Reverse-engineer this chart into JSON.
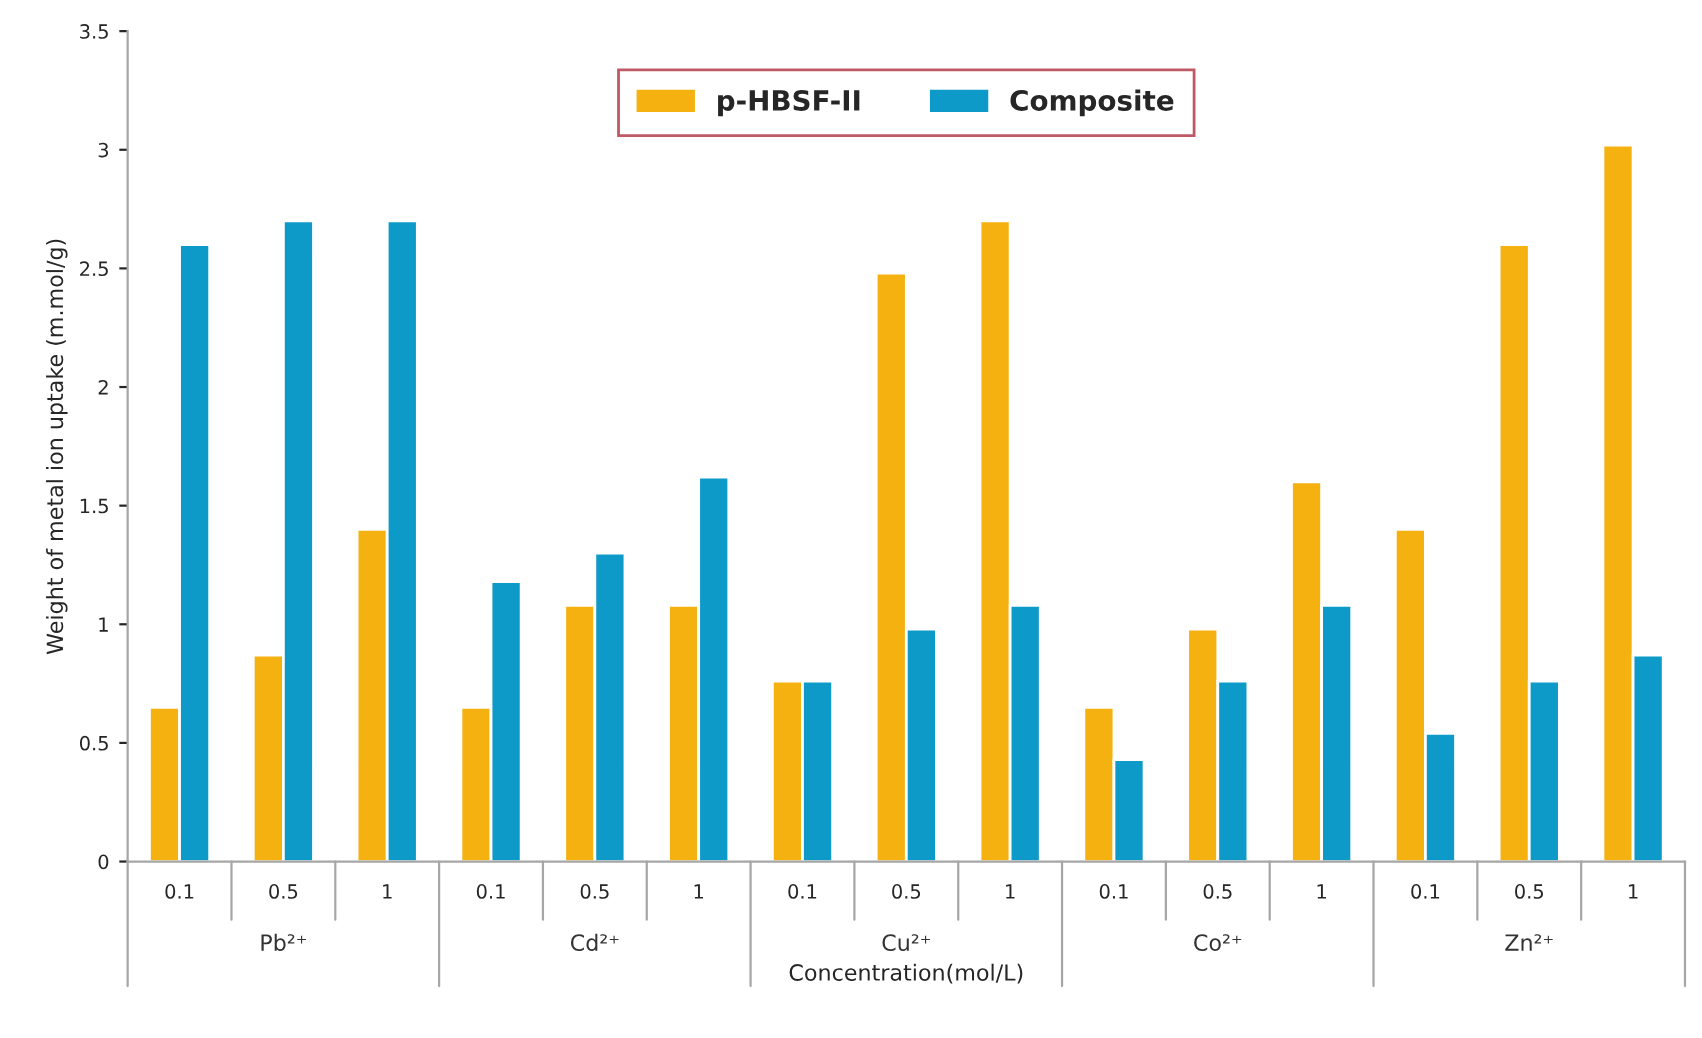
{
  "chart_data": {
    "type": "bar",
    "xlabel": "Concentration(mol/L)",
    "ylabel": "Weight of metal ion uptake (m.mol/g)",
    "categories": [
      "0.1",
      "0.5",
      "1",
      "0.1",
      "0.5",
      "1",
      "0.1",
      "0.5",
      "1",
      "0.1",
      "0.5",
      "1",
      "0.1",
      "0.5",
      "1"
    ],
    "series": [
      {
        "name": "p-HBSF-II",
        "color": "#f5b10f",
        "values": [
          0.65,
          0.87,
          1.4,
          0.65,
          1.08,
          1.08,
          0.76,
          2.48,
          2.7,
          0.65,
          0.98,
          1.6,
          1.4,
          2.6,
          3.02
        ]
      },
      {
        "name": "Composite",
        "color": "#0e9ac8",
        "values": [
          2.6,
          2.7,
          2.7,
          1.18,
          1.3,
          1.62,
          0.76,
          0.98,
          1.08,
          0.43,
          0.76,
          1.08,
          0.54,
          0.76,
          0.87
        ]
      }
    ],
    "annotations": [
      "Pb²⁺",
      "Cd²⁺",
      "Cu²⁺",
      "Co²⁺",
      "Zn²⁺"
    ],
    "ylim": [
      0,
      3.5
    ],
    "yticks": [
      0,
      0.5,
      1,
      1.5,
      2,
      2.5,
      3,
      3.5
    ],
    "grid": false,
    "legend": "top"
  }
}
